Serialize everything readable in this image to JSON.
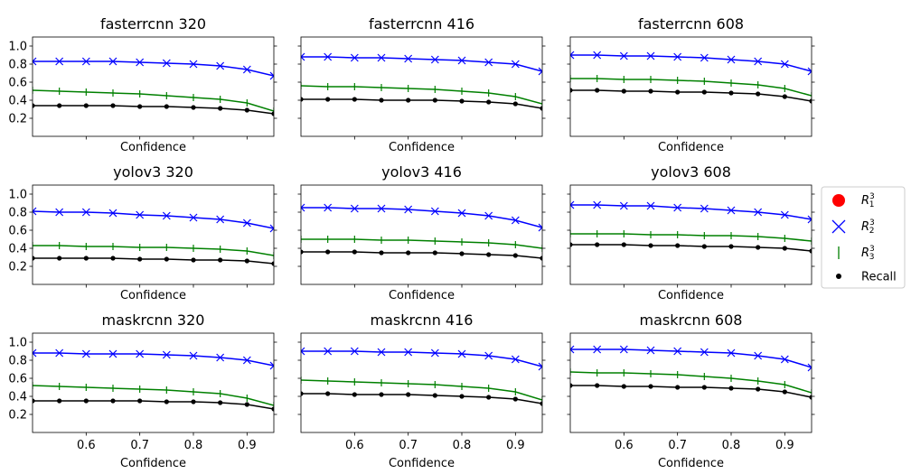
{
  "chart_data": {
    "type": "line",
    "grid": false,
    "legend_position": "right",
    "legend": [
      {
        "label": "R",
        "sub": "1",
        "sup": "3",
        "marker": "circle",
        "color": "#ff0000"
      },
      {
        "label": "R",
        "sub": "2",
        "sup": "3",
        "marker": "x",
        "color": "#0000ff"
      },
      {
        "label": "R",
        "sub": "3",
        "sup": "3",
        "marker": "vline",
        "color": "#008000"
      },
      {
        "label": "Recall",
        "marker": "dot",
        "color": "#000000"
      }
    ],
    "x": [
      0.5,
      0.55,
      0.6,
      0.65,
      0.7,
      0.75,
      0.8,
      0.85,
      0.9,
      0.95
    ],
    "xlim": [
      0.5,
      0.95
    ],
    "ylim": [
      0.0,
      1.1
    ],
    "xticks": [
      "0.6",
      "0.7",
      "0.8",
      "0.9"
    ],
    "xticks_values": [
      0.6,
      0.7,
      0.8,
      0.9
    ],
    "yticks": [
      "0.2",
      "0.4",
      "0.6",
      "0.8",
      "1.0"
    ],
    "yticks_values": [
      0.2,
      0.4,
      0.6,
      0.8,
      1.0
    ],
    "xlabel": "Confidence",
    "panels": [
      {
        "title": "fasterrcnn 320",
        "r2": [
          0.83,
          0.83,
          0.83,
          0.83,
          0.82,
          0.81,
          0.8,
          0.78,
          0.74,
          0.67
        ],
        "r3": [
          0.51,
          0.5,
          0.49,
          0.48,
          0.47,
          0.45,
          0.43,
          0.41,
          0.37,
          0.28
        ],
        "recall": [
          0.34,
          0.34,
          0.34,
          0.34,
          0.33,
          0.33,
          0.32,
          0.31,
          0.29,
          0.25
        ]
      },
      {
        "title": "fasterrcnn 416",
        "r2": [
          0.88,
          0.88,
          0.87,
          0.87,
          0.86,
          0.85,
          0.84,
          0.82,
          0.8,
          0.72
        ],
        "r3": [
          0.56,
          0.55,
          0.55,
          0.54,
          0.53,
          0.52,
          0.5,
          0.48,
          0.44,
          0.36
        ],
        "recall": [
          0.41,
          0.41,
          0.41,
          0.4,
          0.4,
          0.4,
          0.39,
          0.38,
          0.36,
          0.31
        ]
      },
      {
        "title": "fasterrcnn 608",
        "r2": [
          0.9,
          0.9,
          0.89,
          0.89,
          0.88,
          0.87,
          0.85,
          0.83,
          0.8,
          0.72
        ],
        "r3": [
          0.64,
          0.64,
          0.63,
          0.63,
          0.62,
          0.61,
          0.59,
          0.57,
          0.53,
          0.45
        ],
        "recall": [
          0.51,
          0.51,
          0.5,
          0.5,
          0.49,
          0.49,
          0.48,
          0.47,
          0.44,
          0.39
        ]
      },
      {
        "title": "yolov3 320",
        "r2": [
          0.81,
          0.8,
          0.8,
          0.79,
          0.77,
          0.76,
          0.74,
          0.72,
          0.68,
          0.62
        ],
        "r3": [
          0.43,
          0.43,
          0.42,
          0.42,
          0.41,
          0.41,
          0.4,
          0.39,
          0.37,
          0.32
        ],
        "recall": [
          0.29,
          0.29,
          0.29,
          0.29,
          0.28,
          0.28,
          0.27,
          0.27,
          0.26,
          0.23
        ]
      },
      {
        "title": "yolov3 416",
        "r2": [
          0.85,
          0.85,
          0.84,
          0.84,
          0.83,
          0.81,
          0.79,
          0.76,
          0.71,
          0.63
        ],
        "r3": [
          0.5,
          0.5,
          0.5,
          0.49,
          0.49,
          0.48,
          0.47,
          0.46,
          0.44,
          0.4
        ],
        "recall": [
          0.36,
          0.36,
          0.36,
          0.35,
          0.35,
          0.35,
          0.34,
          0.33,
          0.32,
          0.29
        ]
      },
      {
        "title": "yolov3 608",
        "r2": [
          0.88,
          0.88,
          0.87,
          0.87,
          0.85,
          0.84,
          0.82,
          0.8,
          0.77,
          0.72
        ],
        "r3": [
          0.56,
          0.56,
          0.56,
          0.55,
          0.55,
          0.54,
          0.54,
          0.53,
          0.51,
          0.48
        ],
        "recall": [
          0.44,
          0.44,
          0.44,
          0.43,
          0.43,
          0.42,
          0.42,
          0.41,
          0.4,
          0.37
        ]
      },
      {
        "title": "maskrcnn 320",
        "r2": [
          0.88,
          0.88,
          0.87,
          0.87,
          0.87,
          0.86,
          0.85,
          0.83,
          0.8,
          0.74
        ],
        "r3": [
          0.52,
          0.51,
          0.5,
          0.49,
          0.48,
          0.47,
          0.45,
          0.43,
          0.38,
          0.3
        ],
        "recall": [
          0.35,
          0.35,
          0.35,
          0.35,
          0.35,
          0.34,
          0.34,
          0.33,
          0.31,
          0.26
        ]
      },
      {
        "title": "maskrcnn 416",
        "r2": [
          0.9,
          0.9,
          0.9,
          0.89,
          0.89,
          0.88,
          0.87,
          0.85,
          0.81,
          0.73
        ],
        "r3": [
          0.58,
          0.57,
          0.56,
          0.55,
          0.54,
          0.53,
          0.51,
          0.49,
          0.45,
          0.36
        ],
        "recall": [
          0.43,
          0.43,
          0.42,
          0.42,
          0.42,
          0.41,
          0.4,
          0.39,
          0.37,
          0.32
        ]
      },
      {
        "title": "maskrcnn 608",
        "r2": [
          0.92,
          0.92,
          0.92,
          0.91,
          0.9,
          0.89,
          0.88,
          0.85,
          0.81,
          0.72
        ],
        "r3": [
          0.67,
          0.66,
          0.66,
          0.65,
          0.64,
          0.62,
          0.6,
          0.57,
          0.53,
          0.44
        ],
        "recall": [
          0.52,
          0.52,
          0.51,
          0.51,
          0.5,
          0.5,
          0.49,
          0.48,
          0.45,
          0.39
        ]
      }
    ]
  }
}
